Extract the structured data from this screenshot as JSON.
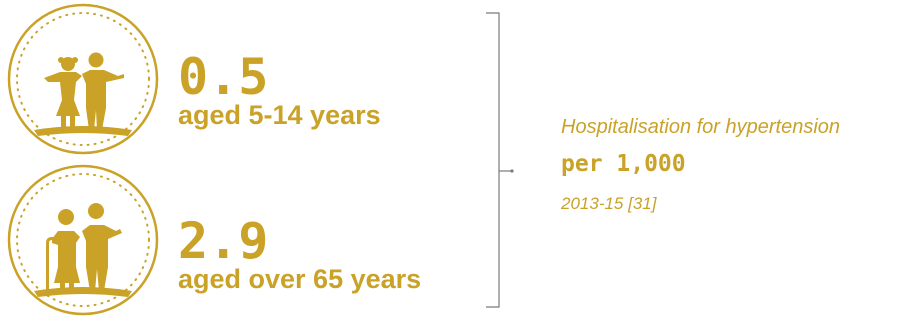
{
  "colors": {
    "gold": "#c9a227",
    "bracket": "#7a7a7a"
  },
  "stats": [
    {
      "icon": "children-icon",
      "value": "0.5",
      "label": "aged 5-14 years"
    },
    {
      "icon": "elderly-couple-icon",
      "value": "2.9",
      "label": "aged over 65 years"
    }
  ],
  "caption": {
    "title": "Hospitalisation for hypertension",
    "unit": "per 1,000",
    "source": "2013-15 [31]"
  }
}
